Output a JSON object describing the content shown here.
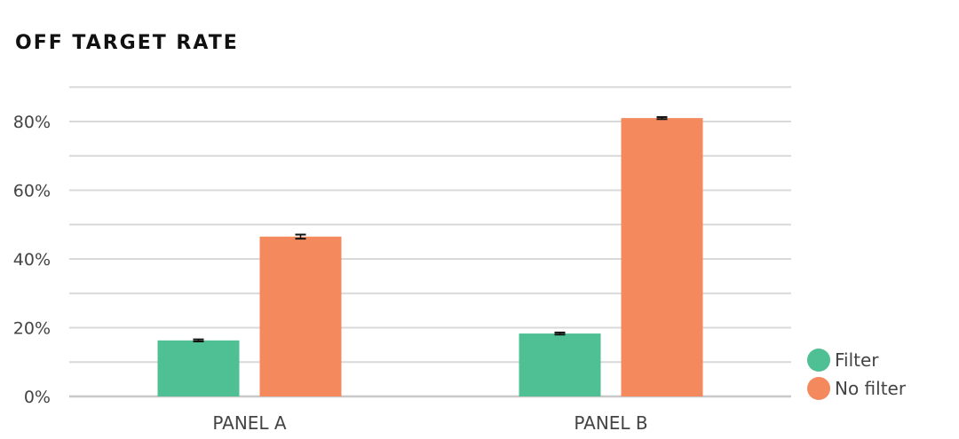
{
  "chart_data": {
    "type": "bar",
    "title": "OFF TARGET RATE",
    "categories": [
      "PANEL A",
      "PANEL B"
    ],
    "series": [
      {
        "name": "Filter",
        "values": [
          16.3,
          18.3
        ],
        "errors": [
          0.3,
          0.3
        ],
        "color": "#4fbf94"
      },
      {
        "name": "No filter",
        "values": [
          46.5,
          81.0
        ],
        "errors": [
          0.6,
          0.3
        ],
        "color": "#f4895d"
      }
    ],
    "y_ticks": [
      "0%",
      "20%",
      "40%",
      "60%",
      "80%"
    ],
    "y_tick_values": [
      0,
      20,
      40,
      60,
      80
    ],
    "ylim": [
      0,
      90
    ],
    "grid": true,
    "legend_position": "bottom-right"
  }
}
